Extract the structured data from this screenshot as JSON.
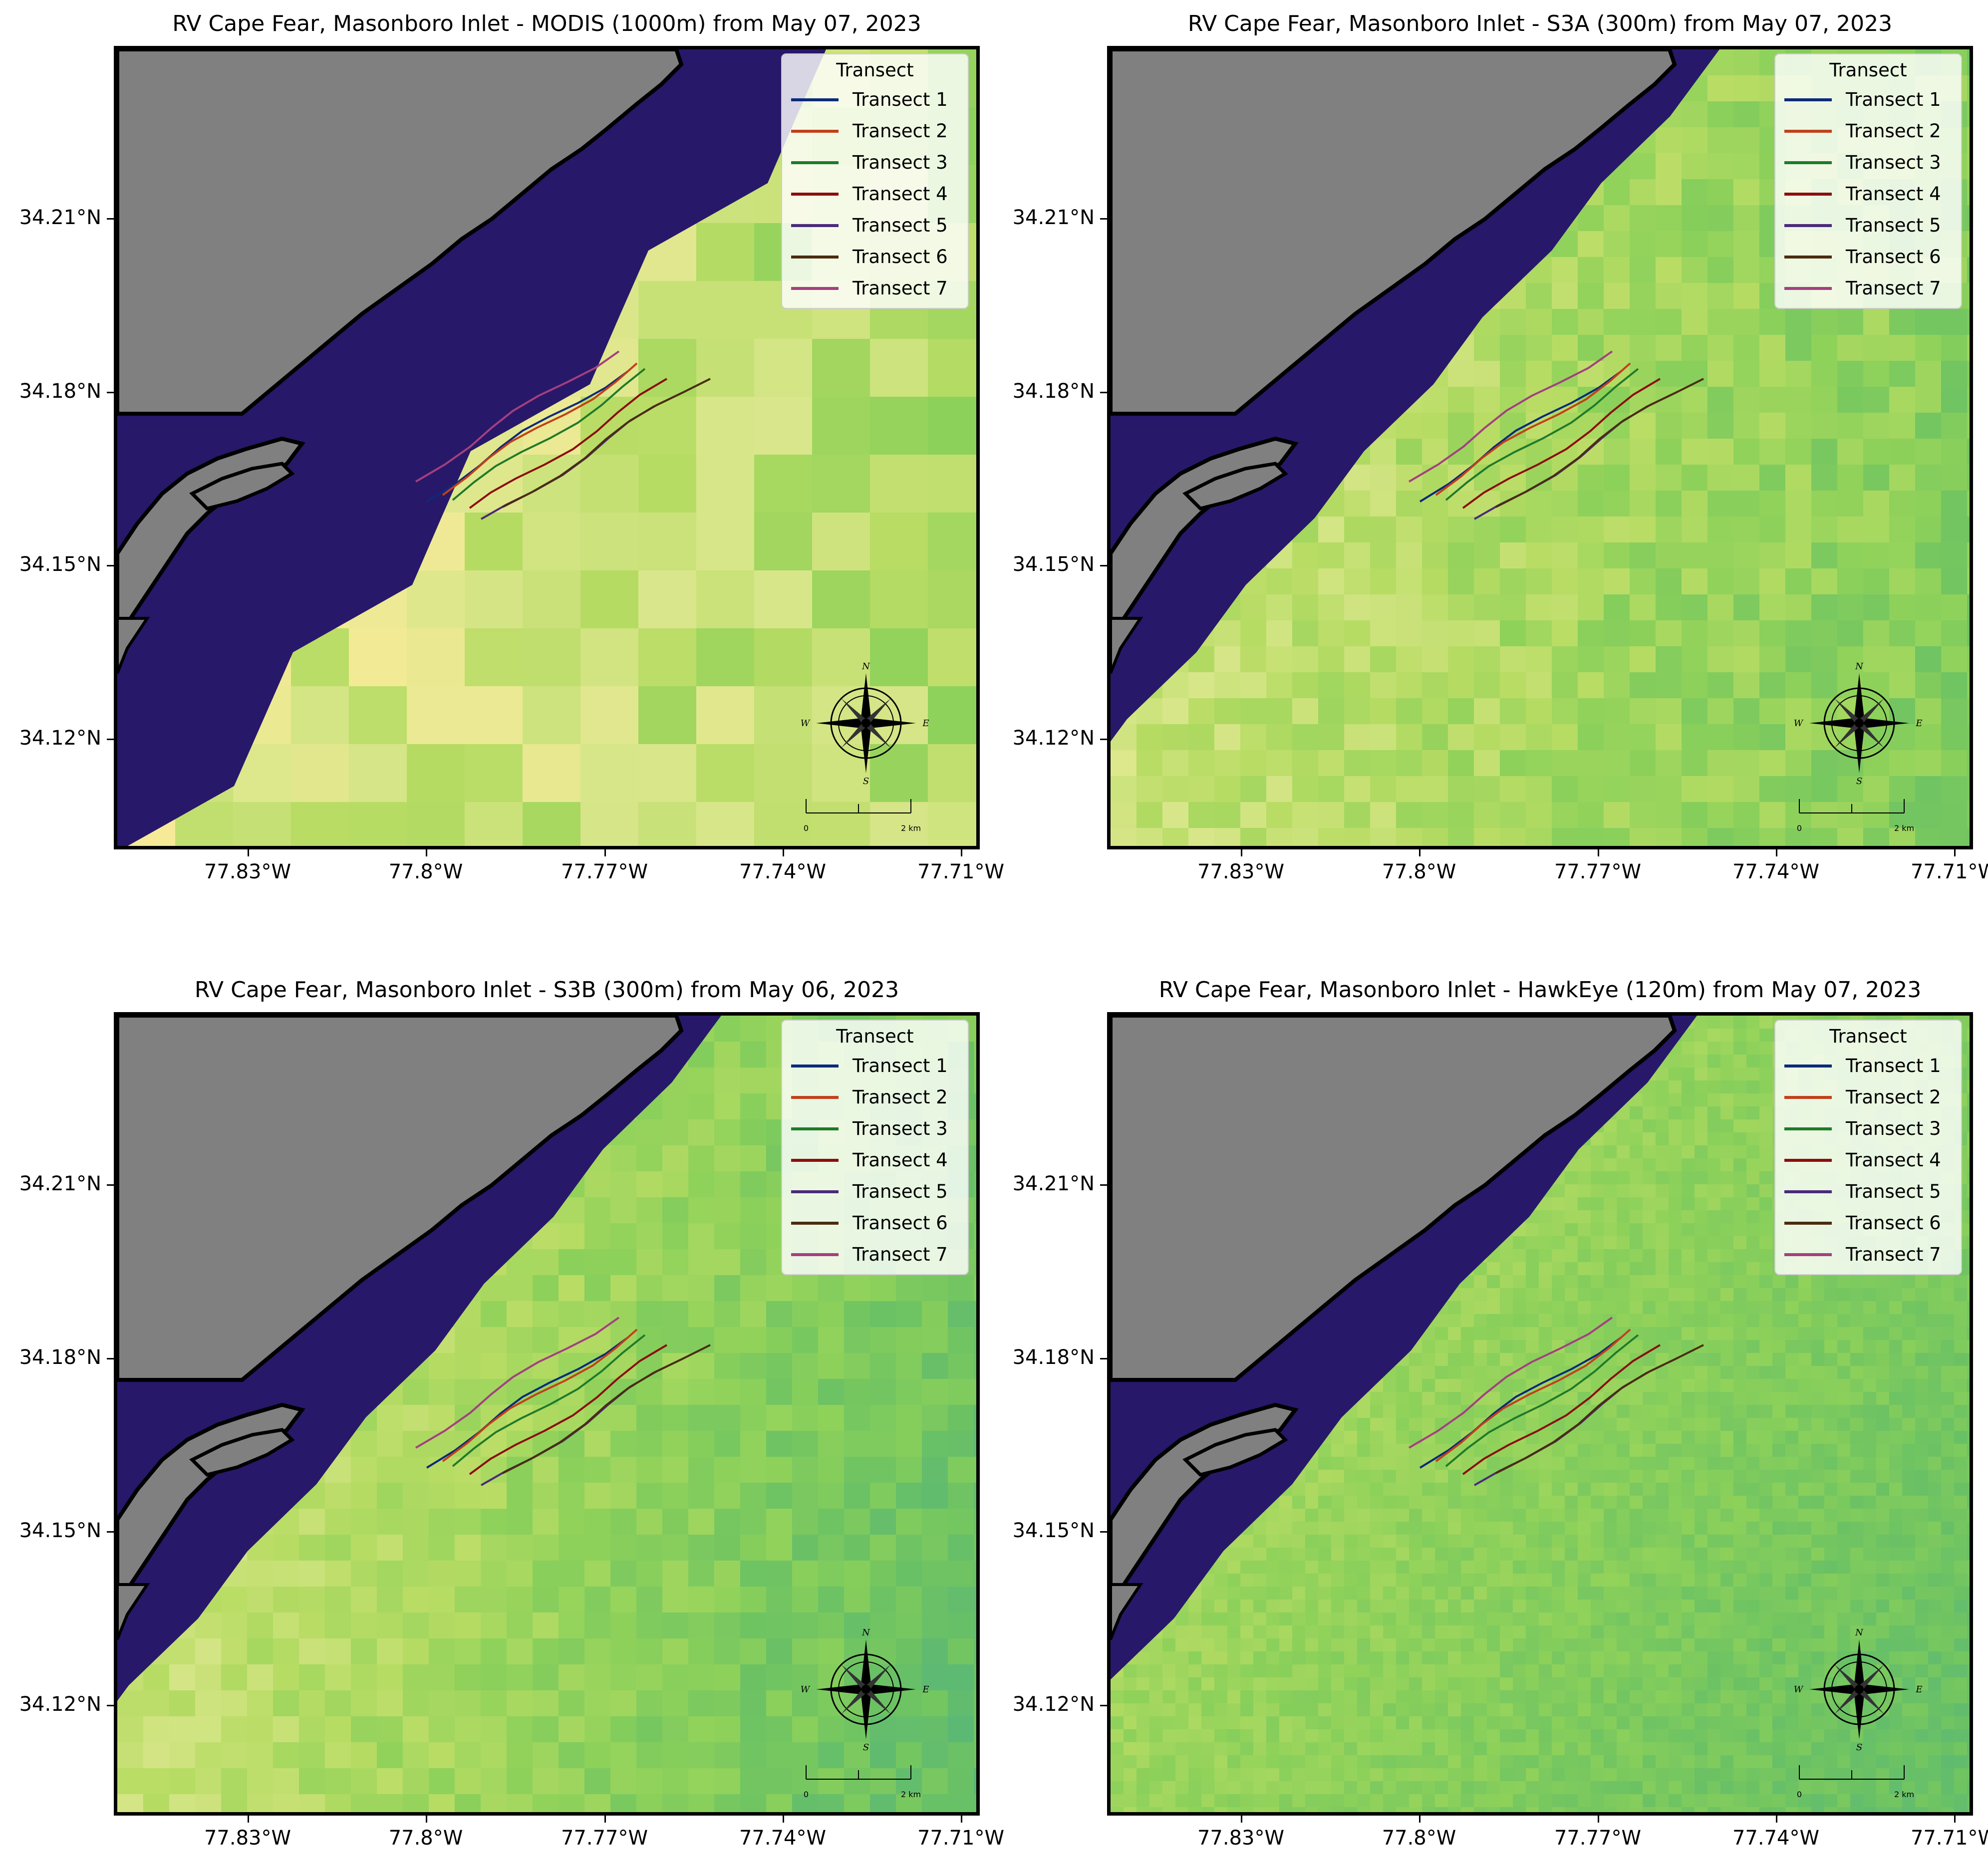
{
  "colors": {
    "land": "#808080",
    "inland_water": "#28186a",
    "coastline": "#000000",
    "colormap": [
      "#2f8a88",
      "#3f9b85",
      "#55b57b",
      "#6cc263",
      "#8dd15a",
      "#b8dc64",
      "#d8e68a",
      "#fbeb9a"
    ]
  },
  "legend": {
    "title": "Transect",
    "entries": [
      {
        "label": "Transect 1",
        "color": "#0c2a7a"
      },
      {
        "label": "Transect 2",
        "color": "#c2401a"
      },
      {
        "label": "Transect 3",
        "color": "#1f7a2a"
      },
      {
        "label": "Transect 4",
        "color": "#8b0e0e"
      },
      {
        "label": "Transect 5",
        "color": "#4b2a7a"
      },
      {
        "label": "Transect 6",
        "color": "#4a2c10"
      },
      {
        "label": "Transect 7",
        "color": "#a3407f"
      }
    ]
  },
  "axes": {
    "x_ticks": [
      "77.83°W",
      "77.8°W",
      "77.77°W",
      "77.74°W",
      "77.71°W"
    ],
    "y_ticks": [
      "34.21°N",
      "34.18°N",
      "34.15°N",
      "34.12°N"
    ]
  },
  "compass": {
    "n": "N",
    "s": "S",
    "e": "E",
    "w": "W"
  },
  "scalebar": {
    "left_label": "0",
    "right_label": "2 km"
  },
  "panels": [
    {
      "title": "RV Cape Fear, Masonboro Inlet - MODIS (1000m) from May 07, 2023",
      "sensor": "MODIS",
      "resolution_m": 1000,
      "date": "May 07, 2023"
    },
    {
      "title": "RV Cape Fear, Masonboro Inlet - S3A (300m) from May 07, 2023",
      "sensor": "S3A",
      "resolution_m": 300,
      "date": "May 07, 2023"
    },
    {
      "title": "RV Cape Fear, Masonboro Inlet - S3B (300m) from May 06, 2023",
      "sensor": "S3B",
      "resolution_m": 300,
      "date": "May 06, 2023"
    },
    {
      "title": "RV Cape Fear, Masonboro Inlet - HawkEye (120m) from May 07, 2023",
      "sensor": "HawkEye",
      "resolution_m": 120,
      "date": "May 07, 2023"
    }
  ]
}
